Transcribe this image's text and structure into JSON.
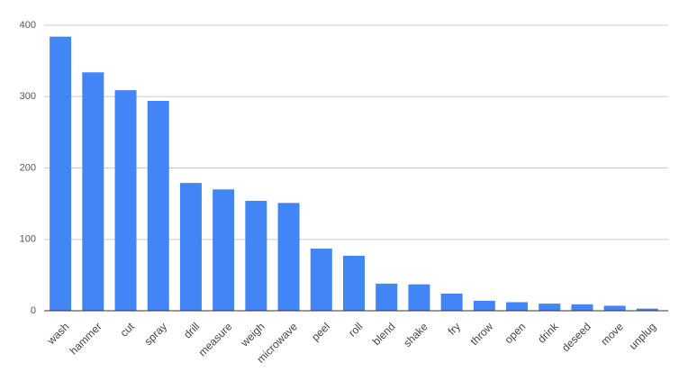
{
  "chart_data": {
    "type": "bar",
    "categories": [
      "wash",
      "hammer",
      "cut",
      "spray",
      "drill",
      "measure",
      "weigh",
      "microwave",
      "peel",
      "roll",
      "blend",
      "shake",
      "fry",
      "throw",
      "open",
      "drink",
      "deseed",
      "move",
      "unplug"
    ],
    "values": [
      384,
      334,
      309,
      294,
      179,
      170,
      154,
      151,
      87,
      77,
      38,
      37,
      24,
      14,
      12,
      10,
      9,
      7,
      3
    ],
    "color": "#4285f4",
    "ylim": [
      0,
      400
    ],
    "yticks": [
      0,
      100,
      200,
      300,
      400
    ],
    "grid": true
  }
}
